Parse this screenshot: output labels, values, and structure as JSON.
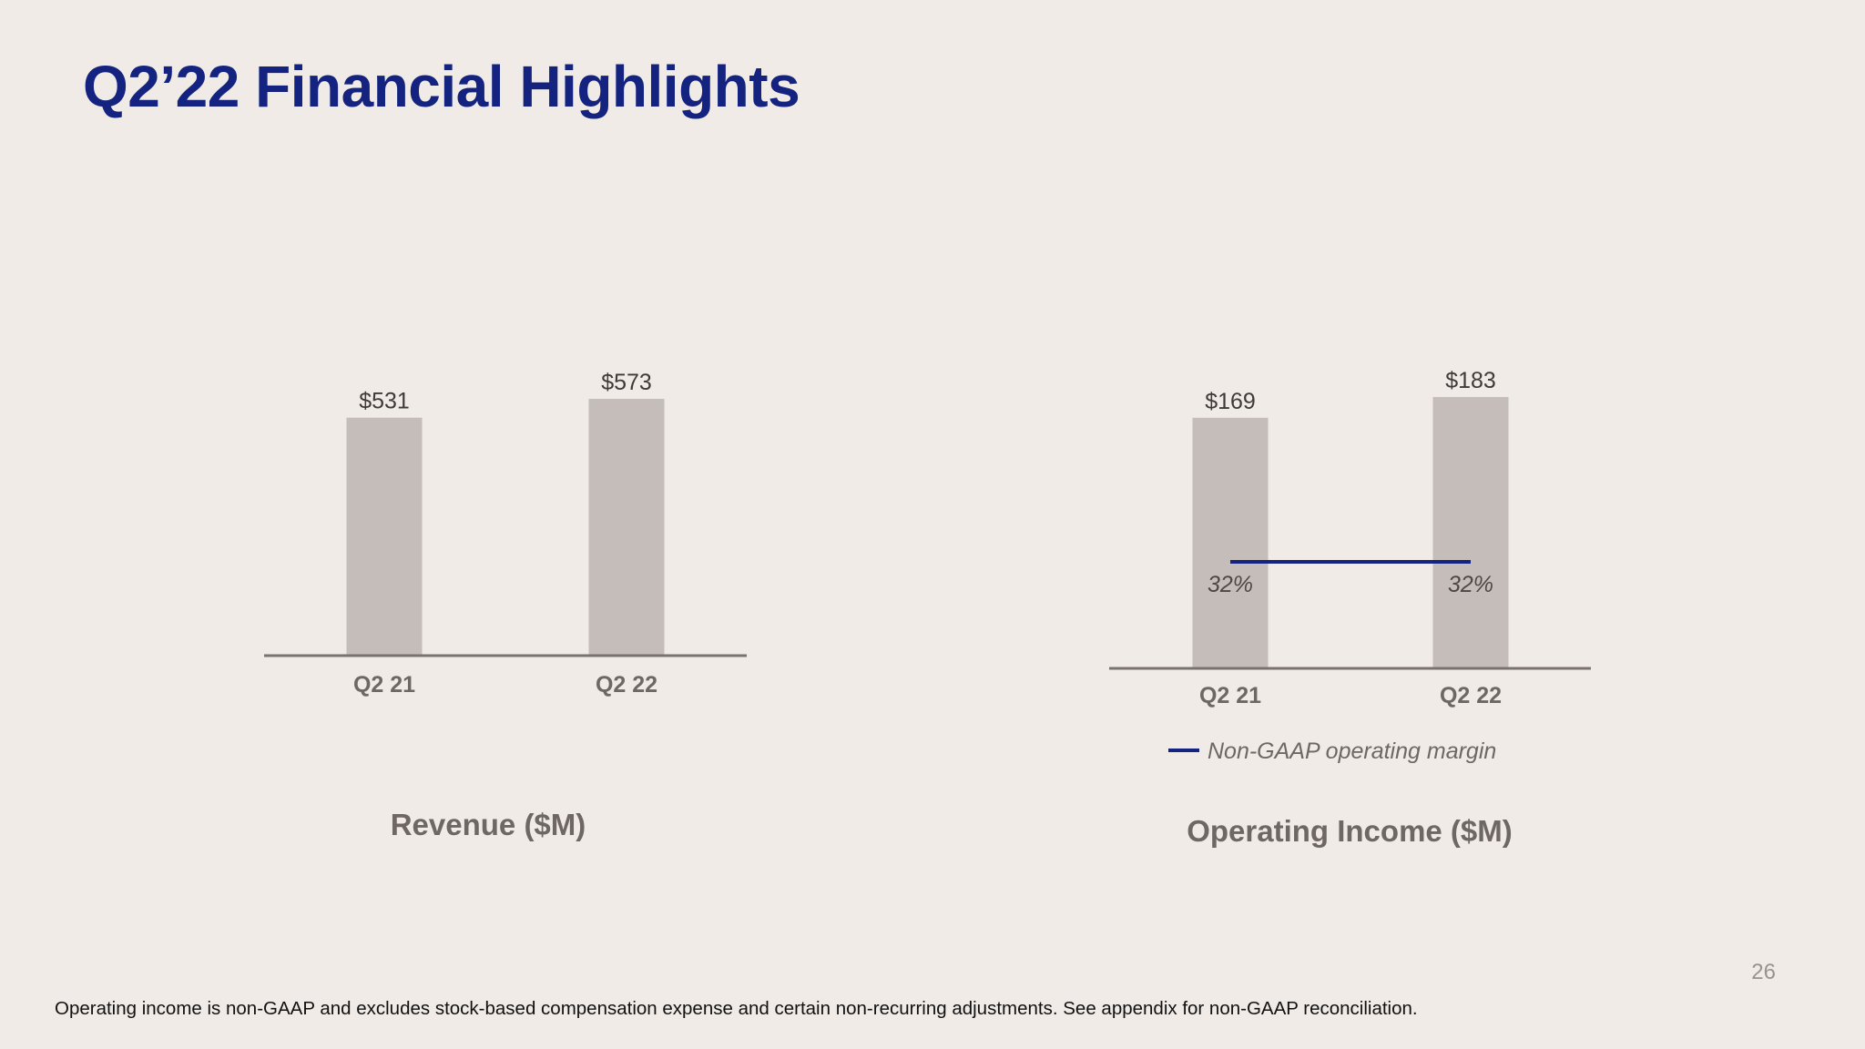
{
  "slide": {
    "title": "Q2’22 Financial Highlights",
    "page_number": "26",
    "footnote": "Operating income is non-GAAP and excludes stock-based compensation expense and certain non-recurring adjustments. See appendix for non-GAAP reconciliation."
  },
  "colors": {
    "title": "#13237f",
    "bar": "#c5bdb9",
    "axis": "#7a726e",
    "margin_line": "#13237f",
    "label": "#6e6763",
    "background": "#f0ebe7"
  },
  "chart_data": [
    {
      "type": "bar",
      "title": "Revenue ($M)",
      "categories": [
        "Q2 21",
        "Q2 22"
      ],
      "values": [
        531,
        573
      ],
      "value_labels": [
        "$531",
        "$573"
      ],
      "grid": false
    },
    {
      "type": "bar",
      "title": "Operating Income ($M)",
      "categories": [
        "Q2 21",
        "Q2 22"
      ],
      "values": [
        169,
        183
      ],
      "value_labels": [
        "$169",
        "$183"
      ],
      "series": [
        {
          "name": "Non-GAAP operating margin",
          "type": "line",
          "values": [
            32,
            32
          ],
          "value_labels": [
            "32%",
            "32%"
          ]
        }
      ],
      "legend_position": "bottom",
      "grid": false
    }
  ]
}
